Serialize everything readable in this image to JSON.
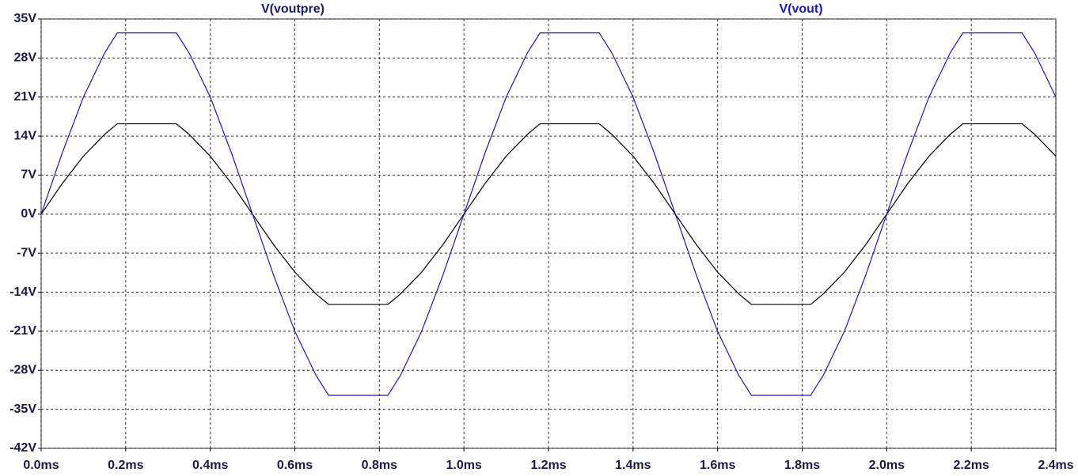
{
  "chart_data": {
    "type": "line",
    "x": [
      0,
      0.05,
      0.1,
      0.15,
      0.18,
      0.2,
      0.25,
      0.3,
      0.32,
      0.35,
      0.4,
      0.45,
      0.5,
      0.55,
      0.6,
      0.65,
      0.68,
      0.7,
      0.75,
      0.8,
      0.82,
      0.85,
      0.9,
      0.95,
      1.0,
      1.05,
      1.1,
      1.15,
      1.18,
      1.2,
      1.25,
      1.3,
      1.32,
      1.35,
      1.4,
      1.45,
      1.5,
      1.55,
      1.6,
      1.65,
      1.68,
      1.7,
      1.75,
      1.8,
      1.82,
      1.85,
      1.9,
      1.95,
      2.0,
      2.05,
      2.1,
      2.15,
      2.18,
      2.2,
      2.25,
      2.3,
      2.32,
      2.35,
      2.4
    ],
    "series": [
      {
        "name": "V(voutpre)",
        "color": "#000000",
        "values": [
          0,
          5.5,
          10.4,
          14.3,
          16.2,
          16.2,
          16.2,
          16.2,
          16.2,
          14.3,
          10.4,
          5.5,
          0,
          -5.5,
          -10.4,
          -14.3,
          -16.2,
          -16.2,
          -16.2,
          -16.2,
          -16.2,
          -14.3,
          -10.4,
          -5.5,
          0,
          5.5,
          10.4,
          14.3,
          16.2,
          16.2,
          16.2,
          16.2,
          16.2,
          14.3,
          10.4,
          5.5,
          0,
          -5.5,
          -10.4,
          -14.3,
          -16.2,
          -16.2,
          -16.2,
          -16.2,
          -16.2,
          -14.3,
          -10.4,
          -5.5,
          0,
          5.5,
          10.4,
          14.3,
          16.2,
          16.2,
          16.2,
          16.2,
          16.2,
          14.3,
          10.4
        ]
      },
      {
        "name": "V(vout)",
        "color": "#1a1ab4",
        "values": [
          0,
          11.0,
          21.0,
          28.9,
          32.5,
          32.5,
          32.5,
          32.5,
          32.5,
          28.9,
          21.0,
          11.0,
          0,
          -11.0,
          -21.0,
          -28.9,
          -32.5,
          -32.5,
          -32.5,
          -32.5,
          -32.5,
          -28.9,
          -21.0,
          -11.0,
          0,
          11.0,
          21.0,
          28.9,
          32.5,
          32.5,
          32.5,
          32.5,
          32.5,
          28.9,
          21.0,
          11.0,
          0,
          -11.0,
          -21.0,
          -28.9,
          -32.5,
          -32.5,
          -32.5,
          -32.5,
          -32.5,
          -28.9,
          -21.0,
          -11.0,
          0,
          11.0,
          21.0,
          28.9,
          32.5,
          32.5,
          32.5,
          32.5,
          32.5,
          28.9,
          21.0
        ]
      }
    ],
    "xlim": [
      0,
      2.4
    ],
    "xticks": [
      {
        "value": 0,
        "label": "0.0ms"
      },
      {
        "value": 0.2,
        "label": "0.2ms"
      },
      {
        "value": 0.4,
        "label": "0.4ms"
      },
      {
        "value": 0.6,
        "label": "0.6ms"
      },
      {
        "value": 0.8,
        "label": "0.8ms"
      },
      {
        "value": 1.0,
        "label": "1.0ms"
      },
      {
        "value": 1.2,
        "label": "1.2ms"
      },
      {
        "value": 1.4,
        "label": "1.4ms"
      },
      {
        "value": 1.6,
        "label": "1.6ms"
      },
      {
        "value": 1.8,
        "label": "1.8ms"
      },
      {
        "value": 2.0,
        "label": "2.0ms"
      },
      {
        "value": 2.2,
        "label": "2.2ms"
      },
      {
        "value": 2.4,
        "label": "2.4ms"
      }
    ],
    "ylim": [
      -42,
      35
    ],
    "yticks": [
      {
        "value": -42,
        "label": "-42V"
      },
      {
        "value": -35,
        "label": "-35V"
      },
      {
        "value": -28,
        "label": "-28V"
      },
      {
        "value": -21,
        "label": "-21V"
      },
      {
        "value": -14,
        "label": "-14V"
      },
      {
        "value": -7,
        "label": "-7V"
      },
      {
        "value": 0,
        "label": "0V"
      },
      {
        "value": 7,
        "label": "7V"
      },
      {
        "value": 14,
        "label": "14V"
      },
      {
        "value": 21,
        "label": "21V"
      },
      {
        "value": 28,
        "label": "28V"
      },
      {
        "value": 35,
        "label": "35V"
      }
    ],
    "grid": true
  }
}
